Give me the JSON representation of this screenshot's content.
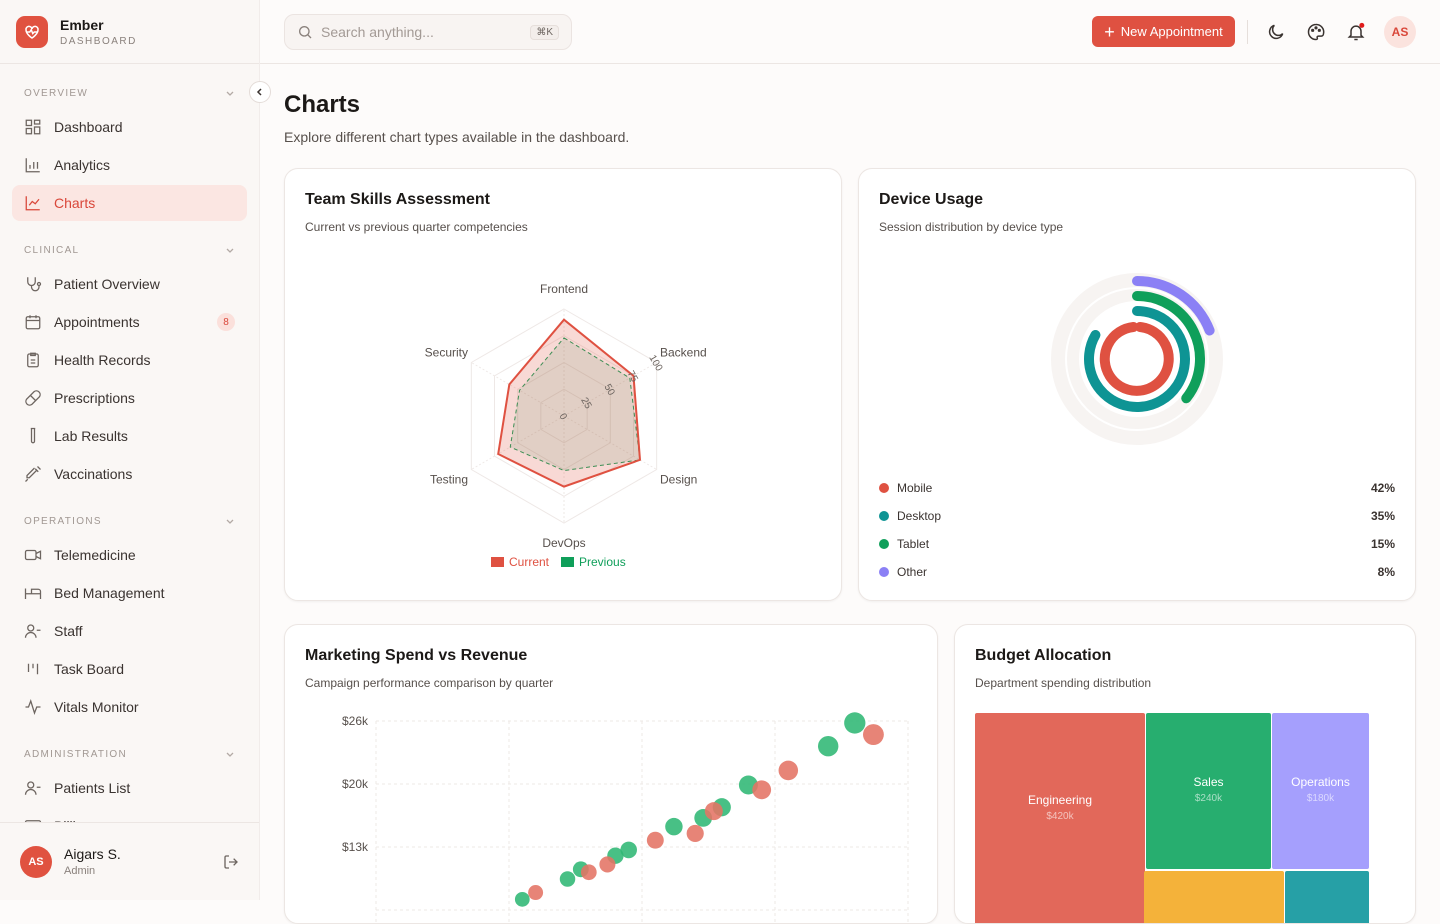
{
  "brand": {
    "name": "Ember",
    "subtitle": "DASHBOARD"
  },
  "search": {
    "placeholder": "Search anything...",
    "shortcut": "⌘K"
  },
  "header": {
    "new_button": "New Appointment",
    "user_initials": "AS",
    "notification_dot": true
  },
  "sidebar": {
    "sections": [
      {
        "label": "OVERVIEW",
        "items": [
          {
            "label": "Dashboard",
            "icon": "grid-icon"
          },
          {
            "label": "Analytics",
            "icon": "bar-chart-icon"
          },
          {
            "label": "Charts",
            "icon": "line-chart-icon",
            "active": true
          }
        ]
      },
      {
        "label": "CLINICAL",
        "items": [
          {
            "label": "Patient Overview",
            "icon": "stethoscope-icon"
          },
          {
            "label": "Appointments",
            "icon": "calendar-icon",
            "badge": "8"
          },
          {
            "label": "Health Records",
            "icon": "clipboard-icon"
          },
          {
            "label": "Prescriptions",
            "icon": "pill-icon"
          },
          {
            "label": "Lab Results",
            "icon": "test-tube-icon"
          },
          {
            "label": "Vaccinations",
            "icon": "syringe-icon"
          }
        ]
      },
      {
        "label": "OPERATIONS",
        "items": [
          {
            "label": "Telemedicine",
            "icon": "video-icon"
          },
          {
            "label": "Bed Management",
            "icon": "bed-icon"
          },
          {
            "label": "Staff",
            "icon": "users-icon"
          },
          {
            "label": "Task Board",
            "icon": "kanban-icon"
          },
          {
            "label": "Vitals Monitor",
            "icon": "activity-icon"
          }
        ]
      },
      {
        "label": "ADMINISTRATION",
        "items": [
          {
            "label": "Patients List",
            "icon": "users-icon"
          },
          {
            "label": "Billing",
            "icon": "card-icon"
          }
        ]
      }
    ],
    "user": {
      "initials": "AS",
      "name": "Aigars S.",
      "role": "Admin"
    }
  },
  "page": {
    "title": "Charts",
    "subtitle": "Explore different chart types available in the dashboard."
  },
  "cards": {
    "radar": {
      "title": "Team Skills Assessment",
      "subtitle": "Current vs previous quarter competencies"
    },
    "device": {
      "title": "Device Usage",
      "subtitle": "Session distribution by device type"
    },
    "scatter": {
      "title": "Marketing Spend vs Revenue",
      "subtitle": "Campaign performance comparison by quarter"
    },
    "budget": {
      "title": "Budget Allocation",
      "subtitle": "Department spending distribution"
    }
  },
  "chart_data": [
    {
      "type": "radar",
      "categories": [
        "Frontend",
        "Backend",
        "Design",
        "DevOps",
        "Testing",
        "Security"
      ],
      "rlim": [
        0,
        100
      ],
      "ticks": [
        "0",
        "25",
        "50",
        "75",
        "100"
      ],
      "series": [
        {
          "name": "Current",
          "color": "#df5141",
          "values": [
            90,
            75,
            82,
            66,
            71,
            59
          ]
        },
        {
          "name": "Previous",
          "color": "#0f9f5a",
          "values": [
            73,
            71,
            82,
            51,
            58,
            48
          ]
        }
      ],
      "legend": "bottom"
    },
    {
      "type": "radial-bar",
      "categories": [
        "Mobile",
        "Desktop",
        "Tablet",
        "Other"
      ],
      "values": [
        42,
        35,
        15,
        8
      ],
      "labels": [
        "42%",
        "35%",
        "15%",
        "8%"
      ],
      "colors": [
        "#df5141",
        "#0e9494",
        "#0f9f5a",
        "#8b80f5"
      ]
    },
    {
      "type": "scatter",
      "ylim": [
        0,
        26
      ],
      "yticks": [
        "$13k",
        "$20k",
        "$26k"
      ],
      "grid": true,
      "series": [
        {
          "color": "#2fb774",
          "points": [
            [
              18.0,
              25.8
            ],
            [
              17.0,
              23.4
            ],
            [
              14.0,
              19.4
            ],
            [
              13.0,
              17.1
            ],
            [
              12.3,
              16.0
            ],
            [
              11.2,
              15.1
            ],
            [
              9.5,
              12.7
            ],
            [
              9.0,
              12.1
            ],
            [
              7.7,
              10.7
            ],
            [
              7.2,
              9.7
            ],
            [
              5.5,
              7.6
            ]
          ]
        },
        {
          "color": "#e47364",
          "points": [
            [
              18.7,
              24.6
            ],
            [
              15.5,
              20.9
            ],
            [
              14.5,
              18.9
            ],
            [
              12.7,
              16.7
            ],
            [
              12.0,
              14.4
            ],
            [
              10.5,
              13.7
            ],
            [
              8.7,
              11.2
            ],
            [
              8.0,
              10.4
            ],
            [
              6.0,
              8.3
            ]
          ]
        }
      ]
    },
    {
      "type": "treemap",
      "items": [
        {
          "name": "Engineering",
          "value": "$420k",
          "color": "#e2685a"
        },
        {
          "name": "Sales",
          "value": "$240k",
          "color": "#27ae6f"
        },
        {
          "name": "Operations",
          "value": "$180k",
          "color": "#a59ffd"
        },
        {
          "name": "",
          "value": "",
          "color": "#f4b23a"
        },
        {
          "name": "",
          "value": "",
          "color": "#26a0a6"
        }
      ]
    }
  ]
}
